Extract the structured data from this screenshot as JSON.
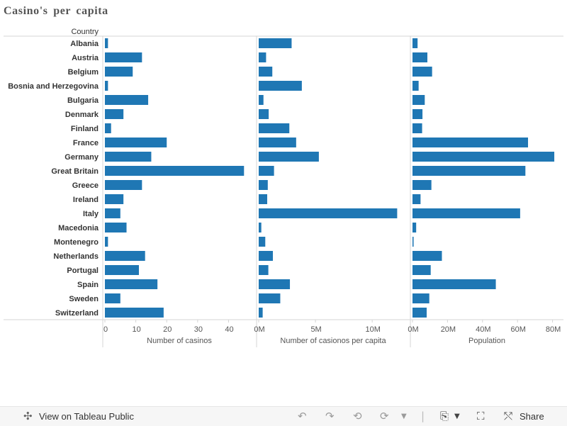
{
  "title": "Casino's per capita",
  "row_header": "Country",
  "colors": {
    "bar": "#1f77b4",
    "axis": "#d4d4d4",
    "text": "#333333"
  },
  "chart_data": {
    "type": "bar",
    "orientation": "horizontal",
    "title": "Casino's per capita",
    "categories": [
      "Albania",
      "Austria",
      "Belgium",
      "Bosnia and Herzegovina",
      "Bulgaria",
      "Denmark",
      "Finland",
      "France",
      "Germany",
      "Great Britain",
      "Greece",
      "Ireland",
      "Italy",
      "Macedonia",
      "Montenegro",
      "Netherlands",
      "Portugal",
      "Spain",
      "Sweden",
      "Switzerland"
    ],
    "panels": [
      {
        "xlabel": "Number of casinos",
        "xlim": [
          0,
          47
        ],
        "ticks": [
          0,
          10,
          20,
          30,
          40
        ],
        "tick_labels": [
          "0",
          "10",
          "20",
          "30",
          "40"
        ],
        "values": [
          1,
          12,
          9,
          1,
          14,
          6,
          2,
          20,
          15,
          45,
          12,
          6,
          5,
          7,
          1,
          13,
          11,
          17,
          5,
          19
        ]
      },
      {
        "xlabel": "Number of casionos per capita",
        "xlim": [
          0,
          12800000
        ],
        "ticks": [
          0,
          5000000,
          10000000
        ],
        "tick_labels": [
          "0M",
          "5M",
          "10M"
        ],
        "values": [
          2900000,
          650000,
          1200000,
          3800000,
          420000,
          880000,
          2700000,
          3300000,
          5300000,
          1350000,
          800000,
          750000,
          12200000,
          230000,
          580000,
          1250000,
          850000,
          2750000,
          1900000,
          350000
        ]
      },
      {
        "xlabel": "Population",
        "xlim": [
          0,
          83000000
        ],
        "ticks": [
          0,
          20000000,
          40000000,
          60000000,
          80000000
        ],
        "tick_labels": [
          "0M",
          "20M",
          "40M",
          "60M",
          "80M"
        ],
        "values": [
          2900000,
          8500000,
          11200000,
          3500000,
          7000000,
          5700000,
          5500000,
          66000000,
          81000000,
          64500000,
          10800000,
          4600000,
          61500000,
          2100000,
          620000,
          16800000,
          10400000,
          47600000,
          9600000,
          8100000
        ]
      }
    ]
  },
  "toolbar": {
    "view_label": "View on Tableau Public",
    "share_label": "Share"
  }
}
